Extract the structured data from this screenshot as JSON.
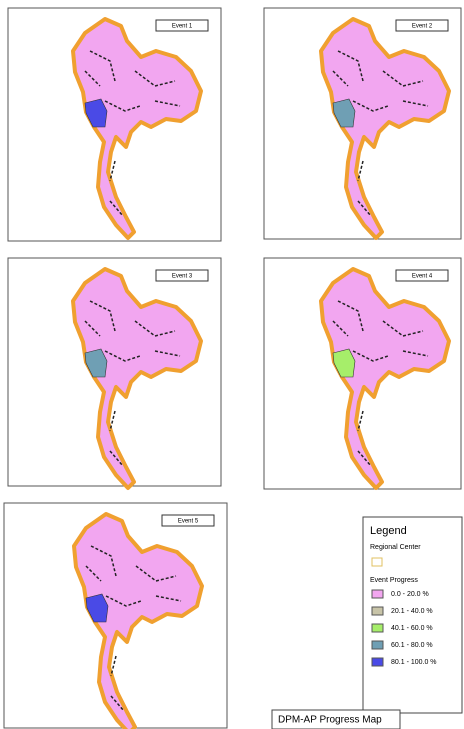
{
  "panels": [
    {
      "label": "Event 1"
    },
    {
      "label": "Event 2"
    },
    {
      "label": "Event 3"
    },
    {
      "label": "Event 4"
    },
    {
      "label": "Event 5"
    }
  ],
  "legend": {
    "title": "Legend",
    "regional_center": "Regional Center",
    "progress_title": "Event Progress",
    "items": [
      {
        "label": "0.0 - 20.0 %",
        "color": "#f2a6f0"
      },
      {
        "label": "20.1 - 40.0 %",
        "color": "#c8c4a8"
      },
      {
        "label": "40.1 - 60.0 %",
        "color": "#a6ee6a"
      },
      {
        "label": "60.1 - 80.0 %",
        "color": "#6f9fb4"
      },
      {
        "label": "80.1 - 100.0 %",
        "color": "#4a4ae6"
      }
    ]
  },
  "footer": "DPM-AP Progress Map"
}
